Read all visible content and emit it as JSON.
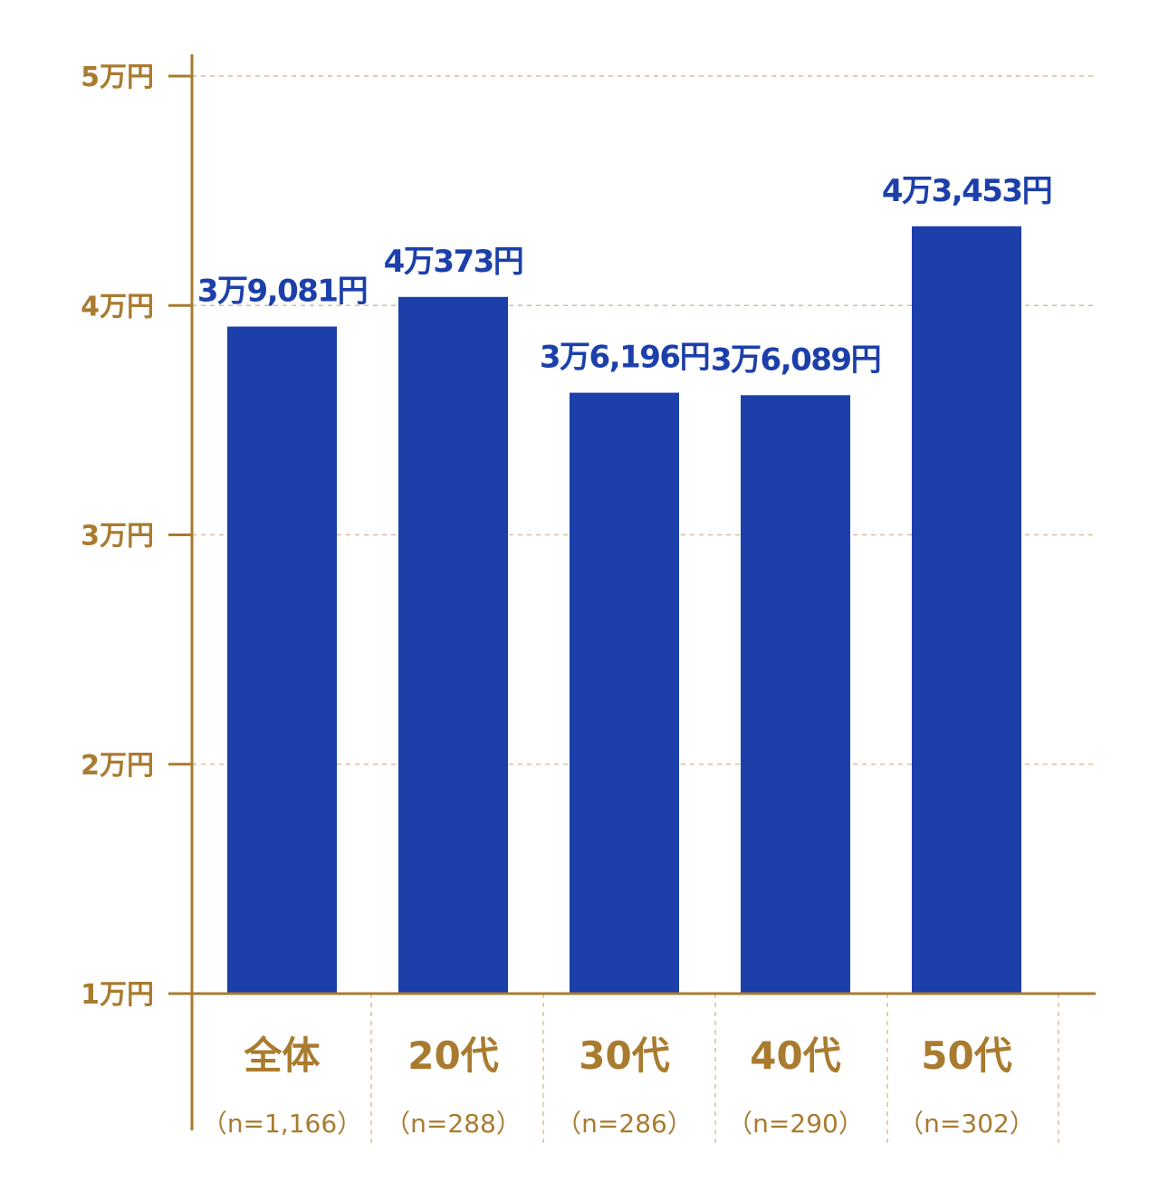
{
  "chart_data": {
    "type": "bar",
    "title": "",
    "xlabel": "",
    "ylabel": "",
    "ylim": [
      10000,
      50000
    ],
    "y_ticks": [
      {
        "value": 50000,
        "label": "5万円"
      },
      {
        "value": 40000,
        "label": "4万円"
      },
      {
        "value": 30000,
        "label": "3万円"
      },
      {
        "value": 20000,
        "label": "2万円"
      },
      {
        "value": 10000,
        "label": "1万円"
      }
    ],
    "categories": [
      "全体",
      "20代",
      "30代",
      "40代",
      "50代"
    ],
    "sample_sizes": [
      "（n=1,166）",
      "（n=288）",
      "（n=286）",
      "（n=290）",
      "（n=302）"
    ],
    "values": [
      39081,
      40373,
      36196,
      36089,
      43453
    ],
    "value_labels": [
      "3万9,081円",
      "4万373円",
      "3万6,196円",
      "3万6,089円",
      "4万3,453円"
    ],
    "grid": true,
    "colors": {
      "bar": "#1c3faa",
      "value_label": "#1c3faa",
      "axis": "#a97b2f",
      "grid": "#d7bf9a",
      "tick_label": "#a97b2f"
    }
  }
}
